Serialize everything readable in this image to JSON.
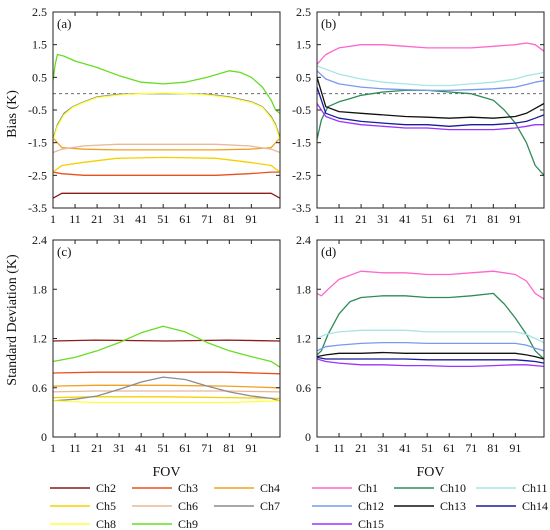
{
  "figure": {
    "y_label_top": "Bias (K)",
    "y_label_bottom": "Standard Deviation (K)"
  },
  "legends": {
    "left": [
      {
        "label": "Ch2",
        "color": "#8b1a1a"
      },
      {
        "label": "Ch3",
        "color": "#e8501e"
      },
      {
        "label": "Ch4",
        "color": "#f0a020"
      },
      {
        "label": "Ch5",
        "color": "#f5d000"
      },
      {
        "label": "Ch6",
        "color": "#e8b89a"
      },
      {
        "label": "Ch7",
        "color": "#8c8c8c"
      },
      {
        "label": "Ch8",
        "color": "#ffff40"
      },
      {
        "label": "Ch9",
        "color": "#66dd22"
      }
    ],
    "right": [
      {
        "label": "Ch1",
        "color": "#ff66cc"
      },
      {
        "label": "Ch10",
        "color": "#2e8b57"
      },
      {
        "label": "Ch11",
        "color": "#a8e4e4"
      },
      {
        "label": "Ch12",
        "color": "#7799ee"
      },
      {
        "label": "Ch13",
        "color": "#111111"
      },
      {
        "label": "Ch14",
        "color": "#1a1a9a"
      },
      {
        "label": "Ch15",
        "color": "#9933ff"
      }
    ]
  },
  "chart_data": [
    {
      "panel": "(a)",
      "type": "line",
      "xlabel": "",
      "ylabel": "Bias (K)",
      "xlim": [
        1,
        104
      ],
      "ylim": [
        -3.5,
        2.5
      ],
      "xticks": [
        1,
        11,
        21,
        31,
        41,
        51,
        61,
        71,
        81,
        91
      ],
      "yticks": [
        -3.5,
        -2.5,
        -1.5,
        -0.5,
        0.5,
        1.5,
        2.5
      ],
      "refline": 0,
      "grid": false,
      "series": [
        {
          "name": "Ch2",
          "color": "#8b1a1a",
          "x": [
            1,
            5,
            15,
            30,
            52,
            75,
            90,
            100,
            104
          ],
          "y": [
            -3.2,
            -3.05,
            -3.05,
            -3.05,
            -3.05,
            -3.05,
            -3.05,
            -3.05,
            -3.2
          ]
        },
        {
          "name": "Ch3",
          "color": "#e8501e",
          "x": [
            1,
            5,
            15,
            30,
            52,
            75,
            90,
            100,
            104
          ],
          "y": [
            -2.4,
            -2.45,
            -2.5,
            -2.5,
            -2.5,
            -2.5,
            -2.45,
            -2.4,
            -2.4
          ]
        },
        {
          "name": "Ch4",
          "color": "#f0a020",
          "x": [
            1,
            5,
            15,
            30,
            52,
            75,
            90,
            100,
            104
          ],
          "y": [
            -1.35,
            -1.65,
            -1.7,
            -1.72,
            -1.72,
            -1.72,
            -1.7,
            -1.65,
            -1.35
          ]
        },
        {
          "name": "Ch5",
          "color": "#f5d000",
          "x": [
            1,
            5,
            15,
            30,
            52,
            75,
            90,
            100,
            104
          ],
          "y": [
            -2.4,
            -2.2,
            -2.1,
            -1.98,
            -1.95,
            -1.98,
            -2.1,
            -2.2,
            -2.4
          ]
        },
        {
          "name": "Ch6",
          "color": "#e8b89a",
          "x": [
            1,
            5,
            15,
            30,
            52,
            75,
            90,
            100,
            104
          ],
          "y": [
            -1.8,
            -1.7,
            -1.6,
            -1.55,
            -1.55,
            -1.55,
            -1.6,
            -1.7,
            -1.8
          ]
        },
        {
          "name": "Ch7",
          "color": "#8c8c8c",
          "x": [
            1,
            3,
            6,
            10,
            15,
            21,
            31,
            41,
            51,
            61,
            71,
            81,
            91,
            96,
            100,
            102,
            104
          ],
          "y": [
            -1.4,
            -0.95,
            -0.6,
            -0.4,
            -0.25,
            -0.1,
            -0.02,
            0.0,
            0.0,
            0.0,
            -0.02,
            -0.1,
            -0.25,
            -0.4,
            -0.7,
            -0.95,
            -1.35
          ]
        },
        {
          "name": "Ch8",
          "color": "#ffff40",
          "x": [
            1,
            3,
            6,
            10,
            15,
            21,
            31,
            41,
            51,
            61,
            71,
            81,
            91,
            96,
            100,
            102,
            104
          ],
          "y": [
            -1.45,
            -1.0,
            -0.65,
            -0.42,
            -0.27,
            -0.12,
            -0.04,
            0.0,
            0.02,
            0.0,
            -0.04,
            -0.12,
            -0.27,
            -0.42,
            -0.75,
            -1.0,
            -1.45
          ]
        },
        {
          "name": "Ch9",
          "color": "#66dd22",
          "x": [
            1,
            2,
            3,
            6,
            11,
            21,
            31,
            41,
            51,
            61,
            71,
            81,
            86,
            91,
            96,
            100,
            102,
            104
          ],
          "y": [
            0.4,
            0.9,
            1.2,
            1.15,
            1.0,
            0.8,
            0.55,
            0.35,
            0.3,
            0.35,
            0.5,
            0.7,
            0.65,
            0.5,
            0.2,
            -0.2,
            -0.5,
            -0.6
          ]
        }
      ]
    },
    {
      "panel": "(b)",
      "type": "line",
      "xlabel": "",
      "ylabel": "",
      "xlim": [
        1,
        104
      ],
      "ylim": [
        -3.5,
        2.5
      ],
      "xticks": [
        1,
        11,
        21,
        31,
        41,
        51,
        61,
        71,
        81,
        91
      ],
      "yticks": [
        -3.5,
        -2.5,
        -1.5,
        -0.5,
        0.5,
        1.5,
        2.5
      ],
      "refline": 0,
      "grid": false,
      "series": [
        {
          "name": "Ch1",
          "color": "#ff66cc",
          "x": [
            1,
            5,
            11,
            21,
            31,
            41,
            51,
            61,
            71,
            81,
            91,
            96,
            100,
            104
          ],
          "y": [
            0.9,
            1.2,
            1.4,
            1.5,
            1.5,
            1.45,
            1.4,
            1.4,
            1.4,
            1.45,
            1.5,
            1.55,
            1.5,
            1.3
          ]
        },
        {
          "name": "Ch10",
          "color": "#2e8b57",
          "x": [
            1,
            3,
            6,
            11,
            16,
            21,
            31,
            41,
            51,
            61,
            71,
            81,
            86,
            91,
            96,
            100,
            104
          ],
          "y": [
            -1.4,
            -0.8,
            -0.4,
            -0.25,
            -0.15,
            -0.05,
            0.05,
            0.1,
            0.1,
            0.05,
            0.0,
            -0.2,
            -0.5,
            -0.9,
            -1.5,
            -2.2,
            -2.5
          ]
        },
        {
          "name": "Ch11",
          "color": "#a8e4e4",
          "x": [
            1,
            5,
            11,
            21,
            31,
            41,
            51,
            61,
            71,
            81,
            91,
            96,
            100,
            104
          ],
          "y": [
            0.85,
            0.75,
            0.6,
            0.45,
            0.35,
            0.3,
            0.25,
            0.25,
            0.3,
            0.35,
            0.45,
            0.55,
            0.6,
            0.65
          ]
        },
        {
          "name": "Ch12",
          "color": "#7799ee",
          "x": [
            1,
            5,
            11,
            21,
            31,
            41,
            51,
            61,
            71,
            81,
            91,
            96,
            100,
            104
          ],
          "y": [
            0.7,
            0.45,
            0.3,
            0.2,
            0.15,
            0.12,
            0.1,
            0.1,
            0.12,
            0.15,
            0.2,
            0.28,
            0.35,
            0.4
          ]
        },
        {
          "name": "Ch13",
          "color": "#111111",
          "x": [
            1,
            5,
            11,
            21,
            31,
            41,
            51,
            61,
            71,
            81,
            91,
            96,
            100,
            104
          ],
          "y": [
            0.5,
            -0.4,
            -0.55,
            -0.6,
            -0.65,
            -0.7,
            -0.72,
            -0.75,
            -0.72,
            -0.75,
            -0.7,
            -0.6,
            -0.45,
            -0.3
          ]
        },
        {
          "name": "Ch14",
          "color": "#1a1a9a",
          "x": [
            1,
            5,
            11,
            21,
            31,
            41,
            51,
            61,
            71,
            81,
            91,
            96,
            100,
            104
          ],
          "y": [
            0.2,
            -0.6,
            -0.75,
            -0.85,
            -0.9,
            -0.95,
            -0.95,
            -1.0,
            -0.95,
            -0.95,
            -0.9,
            -0.85,
            -0.75,
            -0.65
          ]
        },
        {
          "name": "Ch15",
          "color": "#9933ff",
          "x": [
            1,
            5,
            11,
            21,
            31,
            41,
            51,
            61,
            71,
            81,
            91,
            96,
            100,
            104
          ],
          "y": [
            -0.3,
            -0.7,
            -0.85,
            -0.95,
            -1.0,
            -1.05,
            -1.05,
            -1.1,
            -1.1,
            -1.1,
            -1.05,
            -1.0,
            -0.95,
            -0.95
          ]
        }
      ]
    },
    {
      "panel": "(c)",
      "type": "line",
      "xlabel": "FOV",
      "ylabel": "Standard Deviation (K)",
      "xlim": [
        1,
        104
      ],
      "ylim": [
        0,
        2.4
      ],
      "xticks": [
        1,
        11,
        21,
        31,
        41,
        51,
        61,
        71,
        81,
        91
      ],
      "yticks": [
        0,
        0.6,
        1.2,
        1.8,
        2.4
      ],
      "grid": false,
      "series": [
        {
          "name": "Ch2",
          "color": "#8b1a1a",
          "x": [
            1,
            20,
            52,
            80,
            104
          ],
          "y": [
            1.17,
            1.18,
            1.17,
            1.18,
            1.17
          ]
        },
        {
          "name": "Ch3",
          "color": "#e8501e",
          "x": [
            1,
            20,
            52,
            80,
            104
          ],
          "y": [
            0.78,
            0.79,
            0.79,
            0.79,
            0.77
          ]
        },
        {
          "name": "Ch4",
          "color": "#f0a020",
          "x": [
            1,
            20,
            52,
            80,
            104
          ],
          "y": [
            0.62,
            0.63,
            0.63,
            0.62,
            0.6
          ]
        },
        {
          "name": "Ch5",
          "color": "#f5d000",
          "x": [
            1,
            20,
            52,
            80,
            104
          ],
          "y": [
            0.48,
            0.49,
            0.49,
            0.48,
            0.47
          ]
        },
        {
          "name": "Ch6",
          "color": "#e8b89a",
          "x": [
            1,
            20,
            52,
            80,
            104
          ],
          "y": [
            0.55,
            0.56,
            0.56,
            0.56,
            0.55
          ]
        },
        {
          "name": "Ch7",
          "color": "#8c8c8c",
          "x": [
            1,
            11,
            21,
            31,
            41,
            51,
            61,
            71,
            81,
            91,
            100,
            104
          ],
          "y": [
            0.44,
            0.46,
            0.5,
            0.58,
            0.67,
            0.73,
            0.7,
            0.62,
            0.55,
            0.5,
            0.47,
            0.44
          ]
        },
        {
          "name": "Ch8",
          "color": "#ffff40",
          "x": [
            1,
            20,
            52,
            80,
            104
          ],
          "y": [
            0.44,
            0.42,
            0.42,
            0.42,
            0.44
          ]
        },
        {
          "name": "Ch9",
          "color": "#66dd22",
          "x": [
            1,
            11,
            21,
            31,
            41,
            51,
            61,
            71,
            81,
            91,
            100,
            104
          ],
          "y": [
            0.92,
            0.97,
            1.05,
            1.15,
            1.27,
            1.35,
            1.28,
            1.15,
            1.05,
            0.98,
            0.92,
            0.85
          ]
        }
      ]
    },
    {
      "panel": "(d)",
      "type": "line",
      "xlabel": "FOV",
      "ylabel": "",
      "xlim": [
        1,
        104
      ],
      "ylim": [
        0,
        2.4
      ],
      "xticks": [
        1,
        11,
        21,
        31,
        41,
        51,
        61,
        71,
        81,
        91
      ],
      "yticks": [
        0,
        0.6,
        1.2,
        1.8,
        2.4
      ],
      "grid": false,
      "series": [
        {
          "name": "Ch1",
          "color": "#ff66cc",
          "x": [
            1,
            3,
            6,
            11,
            21,
            31,
            41,
            51,
            61,
            71,
            81,
            91,
            96,
            100,
            104
          ],
          "y": [
            1.75,
            1.72,
            1.8,
            1.92,
            2.02,
            2.0,
            2.0,
            1.98,
            1.98,
            2.0,
            2.02,
            1.98,
            1.9,
            1.75,
            1.68
          ]
        },
        {
          "name": "Ch10",
          "color": "#2e8b57",
          "x": [
            1,
            3,
            6,
            11,
            16,
            21,
            31,
            41,
            51,
            61,
            71,
            81,
            86,
            91,
            96,
            100,
            104
          ],
          "y": [
            1.0,
            1.05,
            1.25,
            1.5,
            1.65,
            1.7,
            1.72,
            1.72,
            1.7,
            1.7,
            1.72,
            1.75,
            1.62,
            1.45,
            1.25,
            1.05,
            0.95
          ]
        },
        {
          "name": "Ch11",
          "color": "#a8e4e4",
          "x": [
            1,
            5,
            11,
            21,
            31,
            41,
            51,
            61,
            71,
            81,
            91,
            96,
            100,
            104
          ],
          "y": [
            1.2,
            1.25,
            1.28,
            1.3,
            1.3,
            1.3,
            1.28,
            1.28,
            1.28,
            1.28,
            1.28,
            1.25,
            1.2,
            1.15
          ]
        },
        {
          "name": "Ch12",
          "color": "#7799ee",
          "x": [
            1,
            5,
            11,
            21,
            31,
            41,
            51,
            61,
            71,
            81,
            91,
            96,
            100,
            104
          ],
          "y": [
            1.05,
            1.1,
            1.12,
            1.14,
            1.15,
            1.15,
            1.14,
            1.14,
            1.14,
            1.14,
            1.14,
            1.12,
            1.08,
            1.05
          ]
        },
        {
          "name": "Ch13",
          "color": "#111111",
          "x": [
            1,
            5,
            11,
            21,
            31,
            41,
            51,
            61,
            71,
            81,
            91,
            96,
            100,
            104
          ],
          "y": [
            0.98,
            1.0,
            1.02,
            1.02,
            1.03,
            1.02,
            1.02,
            1.02,
            1.02,
            1.02,
            1.02,
            1.0,
            0.98,
            0.95
          ]
        },
        {
          "name": "Ch14",
          "color": "#1a1a9a",
          "x": [
            1,
            5,
            11,
            21,
            31,
            41,
            51,
            61,
            71,
            81,
            91,
            96,
            100,
            104
          ],
          "y": [
            0.97,
            0.95,
            0.95,
            0.95,
            0.95,
            0.95,
            0.94,
            0.94,
            0.94,
            0.94,
            0.94,
            0.93,
            0.92,
            0.9
          ]
        },
        {
          "name": "Ch15",
          "color": "#9933ff",
          "x": [
            1,
            5,
            11,
            21,
            31,
            41,
            51,
            61,
            71,
            81,
            91,
            96,
            100,
            104
          ],
          "y": [
            0.95,
            0.92,
            0.9,
            0.88,
            0.88,
            0.87,
            0.87,
            0.86,
            0.86,
            0.87,
            0.88,
            0.88,
            0.87,
            0.86
          ]
        }
      ]
    }
  ]
}
